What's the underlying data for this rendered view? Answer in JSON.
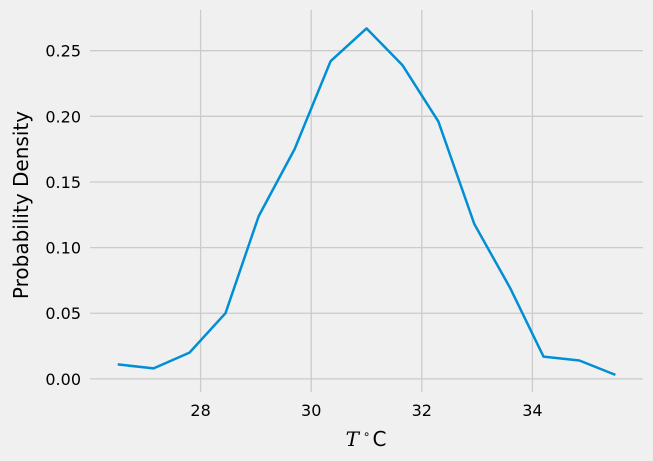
{
  "chart_data": {
    "type": "line",
    "title": "",
    "xlabel_italic": "T",
    "xlabel_rest": "°C",
    "ylabel": "Probability Density",
    "xlim": [
      26.0,
      36.0
    ],
    "ylim": [
      -0.01,
      0.281
    ],
    "x_ticks": [
      28,
      30,
      32,
      34
    ],
    "x_tick_labels": [
      "28",
      "30",
      "32",
      "34"
    ],
    "y_ticks": [
      0.0,
      0.05,
      0.1,
      0.15,
      0.2,
      0.25
    ],
    "y_tick_labels": [
      "0.00",
      "0.05",
      "0.10",
      "0.15",
      "0.20",
      "0.25"
    ],
    "grid": true,
    "line_color": "#008fd5",
    "background": "#f0f0f0",
    "series": [
      {
        "x": [
          26.5,
          27.15,
          27.8,
          28.45,
          29.05,
          29.7,
          30.35,
          31.0,
          31.65,
          32.3,
          32.95,
          33.6,
          34.2,
          34.85,
          35.5
        ],
        "values": [
          0.011,
          0.008,
          0.02,
          0.05,
          0.124,
          0.175,
          0.242,
          0.267,
          0.239,
          0.196,
          0.118,
          0.069,
          0.017,
          0.014,
          0.003
        ]
      }
    ]
  }
}
